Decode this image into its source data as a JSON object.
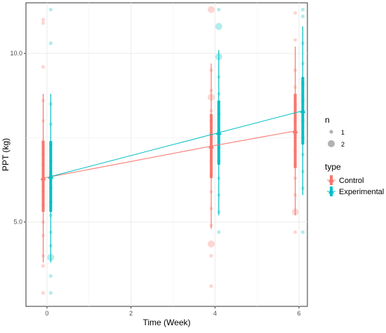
{
  "chart_data": {
    "type": "line",
    "title": "",
    "xlabel": "Time (Week)",
    "ylabel": "PPT (kg)",
    "x_ticks": [
      0,
      2,
      4,
      6
    ],
    "y_ticks": [
      5.0,
      10.0
    ],
    "y_tick_labels": [
      "5.0",
      "10.0"
    ],
    "x_tick_labels": [
      "0",
      "2",
      "4",
      "6"
    ],
    "xlim": [
      -0.5,
      6.2
    ],
    "ylim": [
      2.5,
      11.5
    ],
    "grid": true,
    "legend_position": "right",
    "series": [
      {
        "name": "Control",
        "color": "#F8766D",
        "means": [
          {
            "x": 0,
            "y": 6.3
          },
          {
            "x": 4,
            "y": 7.25
          },
          {
            "x": 6,
            "y": 7.7
          }
        ],
        "errorbars": [
          {
            "x": 0,
            "inner": [
              5.3,
              7.4
            ],
            "outer": [
              3.8,
              8.8
            ]
          },
          {
            "x": 4,
            "inner": [
              6.3,
              8.2
            ],
            "outer": [
              4.8,
              9.7
            ]
          },
          {
            "x": 6,
            "inner": [
              6.6,
              8.8
            ],
            "outer": [
              5.2,
              10.2
            ]
          }
        ],
        "points": [
          {
            "x": 0,
            "y": 11.0,
            "n": 1
          },
          {
            "x": 0,
            "y": 10.9,
            "n": 1
          },
          {
            "x": 0,
            "y": 9.6,
            "n": 1
          },
          {
            "x": 0,
            "y": 8.6,
            "n": 1
          },
          {
            "x": 0,
            "y": 8.0,
            "n": 1
          },
          {
            "x": 0,
            "y": 7.4,
            "n": 1
          },
          {
            "x": 0,
            "y": 7.0,
            "n": 1
          },
          {
            "x": 0,
            "y": 6.7,
            "n": 1
          },
          {
            "x": 0,
            "y": 6.3,
            "n": 1
          },
          {
            "x": 0,
            "y": 5.9,
            "n": 1
          },
          {
            "x": 0,
            "y": 5.5,
            "n": 1
          },
          {
            "x": 0,
            "y": 5.0,
            "n": 1
          },
          {
            "x": 0,
            "y": 4.6,
            "n": 1
          },
          {
            "x": 0,
            "y": 4.0,
            "n": 1
          },
          {
            "x": 0,
            "y": 3.7,
            "n": 1
          },
          {
            "x": 0,
            "y": 2.9,
            "n": 1
          },
          {
            "x": 4,
            "y": 11.3,
            "n": 2
          },
          {
            "x": 4,
            "y": 9.5,
            "n": 1
          },
          {
            "x": 4,
            "y": 8.9,
            "n": 1
          },
          {
            "x": 4,
            "y": 8.7,
            "n": 2
          },
          {
            "x": 4,
            "y": 8.3,
            "n": 1
          },
          {
            "x": 4,
            "y": 8.0,
            "n": 1
          },
          {
            "x": 4,
            "y": 7.6,
            "n": 1
          },
          {
            "x": 4,
            "y": 7.2,
            "n": 1
          },
          {
            "x": 4,
            "y": 6.8,
            "n": 1
          },
          {
            "x": 4,
            "y": 6.4,
            "n": 1
          },
          {
            "x": 4,
            "y": 5.9,
            "n": 1
          },
          {
            "x": 4,
            "y": 5.4,
            "n": 1
          },
          {
            "x": 4,
            "y": 4.9,
            "n": 1
          },
          {
            "x": 4,
            "y": 4.35,
            "n": 2
          },
          {
            "x": 4,
            "y": 4.0,
            "n": 1
          },
          {
            "x": 4,
            "y": 3.1,
            "n": 1
          },
          {
            "x": 6,
            "y": 11.2,
            "n": 1
          },
          {
            "x": 6,
            "y": 10.4,
            "n": 1
          },
          {
            "x": 6,
            "y": 9.5,
            "n": 1
          },
          {
            "x": 6,
            "y": 9.0,
            "n": 1
          },
          {
            "x": 6,
            "y": 8.5,
            "n": 1
          },
          {
            "x": 6,
            "y": 8.0,
            "n": 1
          },
          {
            "x": 6,
            "y": 7.6,
            "n": 1
          },
          {
            "x": 6,
            "y": 7.1,
            "n": 1
          },
          {
            "x": 6,
            "y": 6.7,
            "n": 1
          },
          {
            "x": 6,
            "y": 6.3,
            "n": 1
          },
          {
            "x": 6,
            "y": 5.8,
            "n": 1
          },
          {
            "x": 6,
            "y": 5.3,
            "n": 2
          },
          {
            "x": 6,
            "y": 4.7,
            "n": 1
          }
        ]
      },
      {
        "name": "Experimental",
        "color": "#00BFC4",
        "means": [
          {
            "x": 0,
            "y": 6.35
          },
          {
            "x": 4,
            "y": 7.65
          },
          {
            "x": 6,
            "y": 8.3
          }
        ],
        "errorbars": [
          {
            "x": 0,
            "inner": [
              5.3,
              7.4
            ],
            "outer": [
              3.8,
              8.8
            ]
          },
          {
            "x": 4,
            "inner": [
              6.7,
              8.6
            ],
            "outer": [
              5.2,
              10.1
            ]
          },
          {
            "x": 6,
            "inner": [
              7.3,
              9.3
            ],
            "outer": [
              5.8,
              10.8
            ]
          }
        ],
        "points": [
          {
            "x": 0,
            "y": 11.3,
            "n": 1
          },
          {
            "x": 0,
            "y": 10.3,
            "n": 1
          },
          {
            "x": 0,
            "y": 8.5,
            "n": 1
          },
          {
            "x": 0,
            "y": 7.9,
            "n": 1
          },
          {
            "x": 0,
            "y": 7.3,
            "n": 1
          },
          {
            "x": 0,
            "y": 6.8,
            "n": 1
          },
          {
            "x": 0,
            "y": 6.4,
            "n": 1
          },
          {
            "x": 0,
            "y": 6.0,
            "n": 1
          },
          {
            "x": 0,
            "y": 5.6,
            "n": 1
          },
          {
            "x": 0,
            "y": 5.2,
            "n": 1
          },
          {
            "x": 0,
            "y": 4.7,
            "n": 1
          },
          {
            "x": 0,
            "y": 4.3,
            "n": 1
          },
          {
            "x": 0,
            "y": 3.95,
            "n": 2
          },
          {
            "x": 0,
            "y": 3.4,
            "n": 1
          },
          {
            "x": 0,
            "y": 2.9,
            "n": 1
          },
          {
            "x": 4,
            "y": 11.3,
            "n": 1
          },
          {
            "x": 4,
            "y": 10.8,
            "n": 2
          },
          {
            "x": 4,
            "y": 9.9,
            "n": 2
          },
          {
            "x": 4,
            "y": 9.3,
            "n": 1
          },
          {
            "x": 4,
            "y": 8.8,
            "n": 1
          },
          {
            "x": 4,
            "y": 8.2,
            "n": 1
          },
          {
            "x": 4,
            "y": 7.7,
            "n": 1
          },
          {
            "x": 4,
            "y": 7.2,
            "n": 1
          },
          {
            "x": 4,
            "y": 6.8,
            "n": 1
          },
          {
            "x": 4,
            "y": 6.3,
            "n": 1
          },
          {
            "x": 4,
            "y": 5.8,
            "n": 1
          },
          {
            "x": 4,
            "y": 5.3,
            "n": 1
          },
          {
            "x": 4,
            "y": 4.7,
            "n": 1
          },
          {
            "x": 6,
            "y": 11.3,
            "n": 1
          },
          {
            "x": 6,
            "y": 11.1,
            "n": 1
          },
          {
            "x": 6,
            "y": 10.3,
            "n": 1
          },
          {
            "x": 6,
            "y": 9.7,
            "n": 1
          },
          {
            "x": 6,
            "y": 9.1,
            "n": 1
          },
          {
            "x": 6,
            "y": 8.6,
            "n": 1
          },
          {
            "x": 6,
            "y": 8.0,
            "n": 1
          },
          {
            "x": 6,
            "y": 7.5,
            "n": 1
          },
          {
            "x": 6,
            "y": 7.0,
            "n": 1
          },
          {
            "x": 6,
            "y": 6.5,
            "n": 1
          },
          {
            "x": 6,
            "y": 6.0,
            "n": 1
          },
          {
            "x": 6,
            "y": 4.7,
            "n": 1
          }
        ]
      }
    ],
    "legend_size": {
      "title": "n",
      "entries": [
        "1",
        "2"
      ]
    },
    "legend_color": {
      "title": "type",
      "entries": [
        "Control",
        "Experimental"
      ]
    }
  }
}
